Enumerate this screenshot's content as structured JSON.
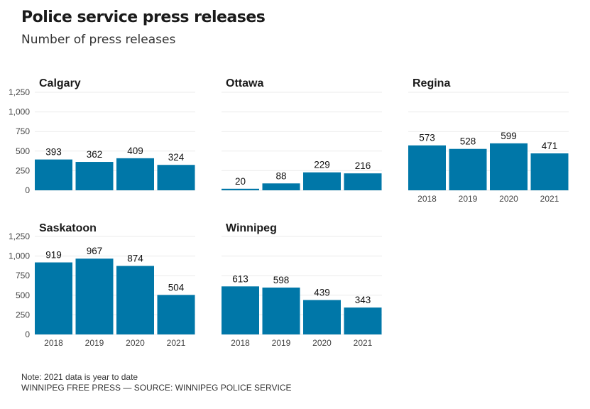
{
  "title": "Police service press releases",
  "subtitle": "Number of press releases",
  "note": "Note: 2021 data is year to date",
  "source": "WINNIPEG FREE PRESS — SOURCE: WINNIPEG POLICE SERVICE",
  "colors": {
    "bar": "#0077a8",
    "grid": "#ebebeb"
  },
  "chart_data": {
    "type": "bar",
    "categories": [
      "2018",
      "2019",
      "2020",
      "2021"
    ],
    "ylim": [
      0,
      1250
    ],
    "yticks": [
      0,
      250,
      500,
      750,
      1000,
      1250
    ],
    "ytick_labels": [
      "0",
      "250",
      "500",
      "750",
      "1,000",
      "1,250"
    ],
    "grid": true,
    "panels": [
      {
        "name": "Calgary",
        "values": [
          393,
          362,
          409,
          324
        ]
      },
      {
        "name": "Ottawa",
        "values": [
          20,
          88,
          229,
          216
        ]
      },
      {
        "name": "Regina",
        "values": [
          573,
          528,
          599,
          471
        ]
      },
      {
        "name": "Saskatoon",
        "values": [
          919,
          967,
          874,
          504
        ]
      },
      {
        "name": "Winnipeg",
        "values": [
          613,
          598,
          439,
          343
        ]
      }
    ]
  }
}
